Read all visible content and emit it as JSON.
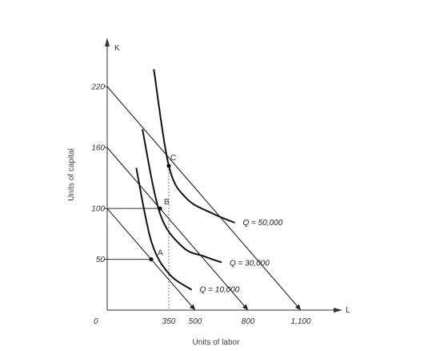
{
  "chart_data": {
    "type": "line",
    "xlabel": "Units of labor",
    "ylabel": "Units of capital",
    "x_axis_symbol": "L",
    "y_axis_symbol": "K",
    "origin_label": "0",
    "x_ticks": [
      "350",
      "500",
      "800",
      "1,100"
    ],
    "y_ticks": [
      "220",
      "160",
      "100",
      "50"
    ],
    "x_tick_values": [
      350,
      500,
      800,
      1100
    ],
    "y_tick_values": [
      220,
      160,
      100,
      50
    ],
    "xlim": [
      0,
      1200
    ],
    "ylim": [
      0,
      240
    ],
    "isoquants": [
      {
        "label": "Q = 10,000",
        "points": [
          [
            165,
            140
          ],
          [
            250,
            68
          ],
          [
            350,
            36
          ],
          [
            480,
            20
          ]
        ]
      },
      {
        "label": "Q = 30,000",
        "points": [
          [
            200,
            178
          ],
          [
            300,
            95
          ],
          [
            430,
            62
          ],
          [
            550,
            53
          ],
          [
            650,
            47
          ]
        ]
      },
      {
        "label": "Q = 50,000",
        "points": [
          [
            265,
            237
          ],
          [
            350,
            142
          ],
          [
            450,
            110
          ],
          [
            600,
            95
          ],
          [
            725,
            86
          ]
        ]
      }
    ],
    "isocosts": [
      {
        "points": [
          [
            0,
            100
          ],
          [
            500,
            0
          ]
        ]
      },
      {
        "points": [
          [
            0,
            160
          ],
          [
            800,
            0
          ]
        ]
      },
      {
        "points": [
          [
            0,
            220
          ],
          [
            1100,
            0
          ]
        ]
      }
    ],
    "tangency_points": [
      {
        "label": "A",
        "x": 250,
        "y": 50
      },
      {
        "label": "B",
        "x": 300,
        "y": 100
      },
      {
        "label": "C",
        "x": 350,
        "y": 142
      }
    ],
    "grid": false
  }
}
